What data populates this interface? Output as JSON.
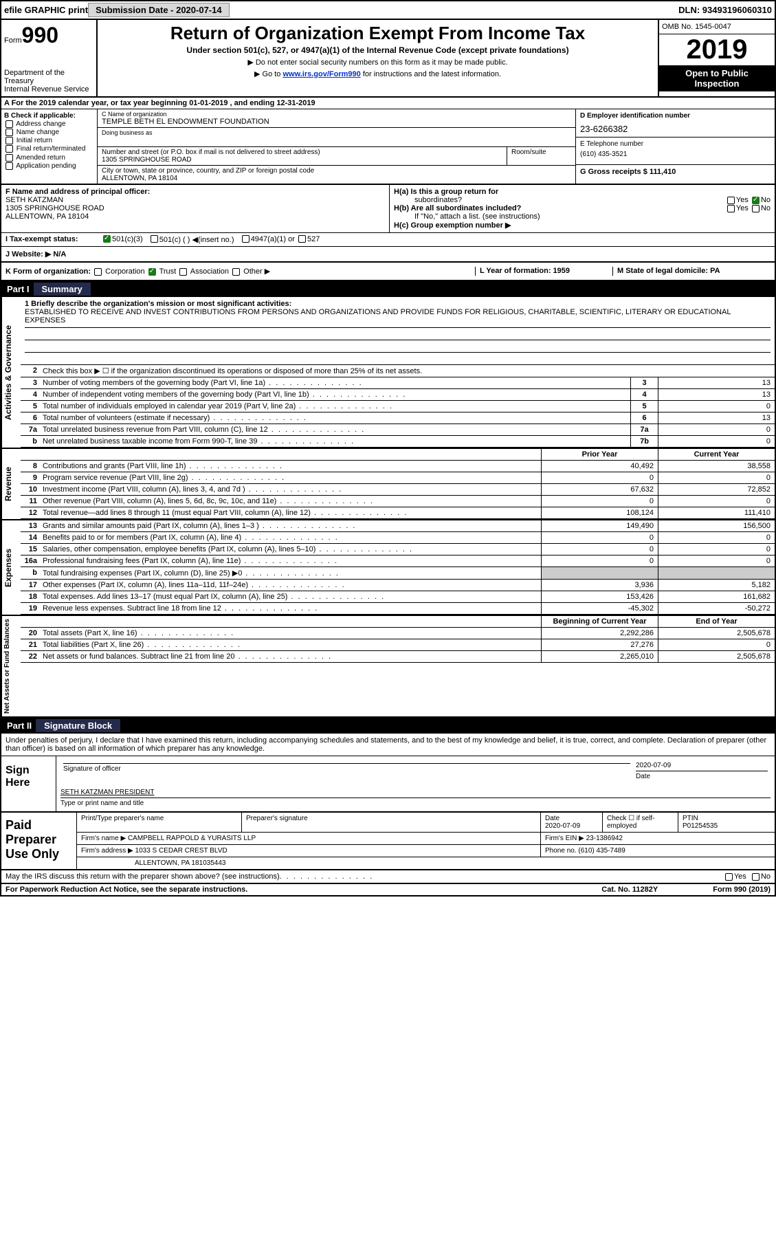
{
  "colors": {
    "black": "#000000",
    "white": "#ffffff",
    "link": "#0033cc",
    "shade": "#cccccc",
    "navy": "#242a4a",
    "btn_bg": "#d8d8d8",
    "check_green": "#1a7a1a"
  },
  "top": {
    "efile": "efile GRAPHIC print",
    "submission_label": "Submission Date - 2020-07-14",
    "dln": "DLN: 93493196060310"
  },
  "header": {
    "form_word": "Form",
    "form_num": "990",
    "dept": "Department of the Treasury",
    "irs": "Internal Revenue Service",
    "title": "Return of Organization Exempt From Income Tax",
    "subtitle": "Under section 501(c), 527, or 4947(a)(1) of the Internal Revenue Code (except private foundations)",
    "note1": "▶ Do not enter social security numbers on this form as it may be made public.",
    "note2_pre": "▶ Go to ",
    "note2_link": "www.irs.gov/Form990",
    "note2_post": " for instructions and the latest information.",
    "omb": "OMB No. 1545-0047",
    "year": "2019",
    "open1": "Open to Public",
    "open2": "Inspection"
  },
  "line_a": "A For the 2019 calendar year, or tax year beginning 01-01-2019    , and ending 12-31-2019",
  "sec_b": {
    "label": "B Check if applicable:",
    "opts": [
      "Address change",
      "Name change",
      "Initial return",
      "Final return/terminated",
      "Amended return",
      "Application pending"
    ],
    "c_lbl": "C Name of organization",
    "c_val": "TEMPLE BETH EL ENDOWMENT FOUNDATION",
    "dba_lbl": "Doing business as",
    "addr_lbl": "Number and street (or P.O. box if mail is not delivered to street address)",
    "addr_val": "1305 SPRINGHOUSE ROAD",
    "room_lbl": "Room/suite",
    "city_lbl": "City or town, state or province, country, and ZIP or foreign postal code",
    "city_val": "ALLENTOWN, PA  18104",
    "d_lbl": "D Employer identification number",
    "d_val": "23-6266382",
    "e_lbl": "E Telephone number",
    "e_val": "(610) 435-3521",
    "g_lbl": "G Gross receipts $ 111,410"
  },
  "sec_f": {
    "label": "F  Name and address of principal officer:",
    "name": "SETH KATZMAN",
    "addr1": "1305 SPRINGHOUSE ROAD",
    "addr2": "ALLENTOWN, PA  18104"
  },
  "sec_h": {
    "ha": "H(a)  Is this a group return for",
    "ha2": "subordinates?",
    "hb": "H(b)  Are all subordinates included?",
    "hb_note": "If \"No,\" attach a list. (see instructions)",
    "hc": "H(c)  Group exemption number ▶",
    "yes": "Yes",
    "no": "No"
  },
  "exempt": {
    "i_lbl": "I    Tax-exempt status:",
    "o1": "501(c)(3)",
    "o2": "501(c) (  ) ◀(insert no.)",
    "o3": "4947(a)(1) or",
    "o4": "527"
  },
  "web": {
    "j_lbl": "J   Website: ▶",
    "j_val": "N/A"
  },
  "k": {
    "label": "K Form of organization:",
    "opts": [
      "Corporation",
      "Trust",
      "Association",
      "Other ▶"
    ],
    "l_lbl": "L Year of formation: 1959",
    "m_lbl": "M State of legal domicile: PA"
  },
  "part1": {
    "num": "Part I",
    "title": "Summary",
    "vtabs": [
      "Activities & Governance",
      "Revenue",
      "Expenses",
      "Net Assets or Fund Balances"
    ],
    "line1_lbl": "1   Briefly describe the organization's mission or most significant activities:",
    "mission": "ESTABLISHED TO RECEIVE AND INVEST CONTRIBUTIONS FROM PERSONS AND ORGANIZATIONS AND PROVIDE FUNDS FOR RELIGIOUS, CHARITABLE, SCIENTIFIC, LITERARY OR EDUCATIONAL EXPENSES",
    "line2": "Check this box ▶ ☐  if the organization discontinued its operations or disposed of more than 25% of its net assets.",
    "rows_a": [
      {
        "n": "3",
        "lbl": "Number of voting members of the governing body (Part VI, line 1a)",
        "cell": "3",
        "val": "13"
      },
      {
        "n": "4",
        "lbl": "Number of independent voting members of the governing body (Part VI, line 1b)",
        "cell": "4",
        "val": "13"
      },
      {
        "n": "5",
        "lbl": "Total number of individuals employed in calendar year 2019 (Part V, line 2a)",
        "cell": "5",
        "val": "0"
      },
      {
        "n": "6",
        "lbl": "Total number of volunteers (estimate if necessary)",
        "cell": "6",
        "val": "13"
      },
      {
        "n": "7a",
        "lbl": "Total unrelated business revenue from Part VIII, column (C), line 12",
        "cell": "7a",
        "val": "0"
      },
      {
        "n": "b",
        "lbl": "Net unrelated business taxable income from Form 990-T, line 39",
        "cell": "7b",
        "val": "0"
      }
    ],
    "col_prior": "Prior Year",
    "col_current": "Current Year",
    "rows_r": [
      {
        "n": "8",
        "lbl": "Contributions and grants (Part VIII, line 1h)",
        "py": "40,492",
        "cy": "38,558"
      },
      {
        "n": "9",
        "lbl": "Program service revenue (Part VIII, line 2g)",
        "py": "0",
        "cy": "0"
      },
      {
        "n": "10",
        "lbl": "Investment income (Part VIII, column (A), lines 3, 4, and 7d )",
        "py": "67,632",
        "cy": "72,852"
      },
      {
        "n": "11",
        "lbl": "Other revenue (Part VIII, column (A), lines 5, 6d, 8c, 9c, 10c, and 11e)",
        "py": "0",
        "cy": "0"
      },
      {
        "n": "12",
        "lbl": "Total revenue—add lines 8 through 11 (must equal Part VIII, column (A), line 12)",
        "py": "108,124",
        "cy": "111,410"
      }
    ],
    "rows_e": [
      {
        "n": "13",
        "lbl": "Grants and similar amounts paid (Part IX, column (A), lines 1–3 )",
        "py": "149,490",
        "cy": "156,500"
      },
      {
        "n": "14",
        "lbl": "Benefits paid to or for members (Part IX, column (A), line 4)",
        "py": "0",
        "cy": "0"
      },
      {
        "n": "15",
        "lbl": "Salaries, other compensation, employee benefits (Part IX, column (A), lines 5–10)",
        "py": "0",
        "cy": "0"
      },
      {
        "n": "16a",
        "lbl": "Professional fundraising fees (Part IX, column (A), line 11e)",
        "py": "0",
        "cy": "0"
      },
      {
        "n": "b",
        "lbl": "Total fundraising expenses (Part IX, column (D), line 25) ▶0",
        "py": "",
        "cy": "",
        "shade": true
      },
      {
        "n": "17",
        "lbl": "Other expenses (Part IX, column (A), lines 11a–11d, 11f–24e)",
        "py": "3,936",
        "cy": "5,182"
      },
      {
        "n": "18",
        "lbl": "Total expenses. Add lines 13–17 (must equal Part IX, column (A), line 25)",
        "py": "153,426",
        "cy": "161,682"
      },
      {
        "n": "19",
        "lbl": "Revenue less expenses. Subtract line 18 from line 12",
        "py": "-45,302",
        "cy": "-50,272"
      }
    ],
    "col_begin": "Beginning of Current Year",
    "col_end": "End of Year",
    "rows_n": [
      {
        "n": "20",
        "lbl": "Total assets (Part X, line 16)",
        "py": "2,292,286",
        "cy": "2,505,678"
      },
      {
        "n": "21",
        "lbl": "Total liabilities (Part X, line 26)",
        "py": "27,276",
        "cy": "0"
      },
      {
        "n": "22",
        "lbl": "Net assets or fund balances. Subtract line 21 from line 20",
        "py": "2,265,010",
        "cy": "2,505,678"
      }
    ]
  },
  "part2": {
    "num": "Part II",
    "title": "Signature Block",
    "decl": "Under penalties of perjury, I declare that I have examined this return, including accompanying schedules and statements, and to the best of my knowledge and belief, it is true, correct, and complete. Declaration of preparer (other than officer) is based on all information of which preparer has any knowledge."
  },
  "sign": {
    "label": "Sign Here",
    "sig_lbl": "Signature of officer",
    "date_lbl": "Date",
    "date_val": "2020-07-09",
    "name": "SETH KATZMAN  PRESIDENT",
    "name_lbl": "Type or print name and title"
  },
  "paid": {
    "label": "Paid Preparer Use Only",
    "h1": "Print/Type preparer's name",
    "h2": "Preparer's signature",
    "h3": "Date",
    "h3v": "2020-07-09",
    "h4": "Check ☐ if self-employed",
    "h5": "PTIN",
    "h5v": "P01254535",
    "firm_lbl": "Firm's name    ▶",
    "firm_val": "CAMPBELL RAPPOLD & YURASITS LLP",
    "ein_lbl": "Firm's EIN ▶",
    "ein_val": "23-1386942",
    "addr_lbl": "Firm's address ▶",
    "addr_val": "1033 S CEDAR CREST BLVD",
    "addr_val2": "ALLENTOWN, PA  181035443",
    "phone_lbl": "Phone no.",
    "phone_val": "(610) 435-7489"
  },
  "irs_discuss": "May the IRS discuss this return with the preparer shown above? (see instructions)",
  "footer": {
    "left": "For Paperwork Reduction Act Notice, see the separate instructions.",
    "mid": "Cat. No. 11282Y",
    "right": "Form 990 (2019)"
  }
}
